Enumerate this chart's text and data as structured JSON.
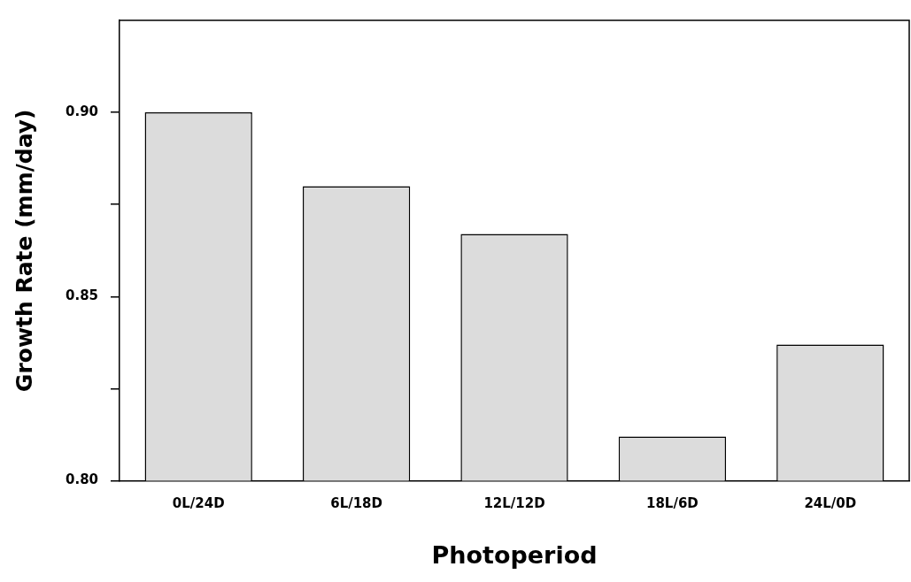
{
  "chart_data": {
    "type": "bar",
    "xlabel": "Photoperiod",
    "ylabel": "Growth Rate (mm/day)",
    "categories": [
      "0L/24D",
      "6L/18D",
      "12L/12D",
      "18L/6D",
      "24L/0D"
    ],
    "values": [
      0.9,
      0.88,
      0.867,
      0.812,
      0.837
    ],
    "color": "#dcdcdc",
    "ylim": [
      0.8,
      0.925
    ],
    "yticks": [
      {
        "value": 0.8,
        "label": "0.80"
      },
      {
        "value": 0.825,
        "label": null
      },
      {
        "value": 0.85,
        "label": "0.85"
      },
      {
        "value": 0.875,
        "label": null
      },
      {
        "value": 0.9,
        "label": "0.90"
      }
    ],
    "grid": false,
    "legend": false
  }
}
